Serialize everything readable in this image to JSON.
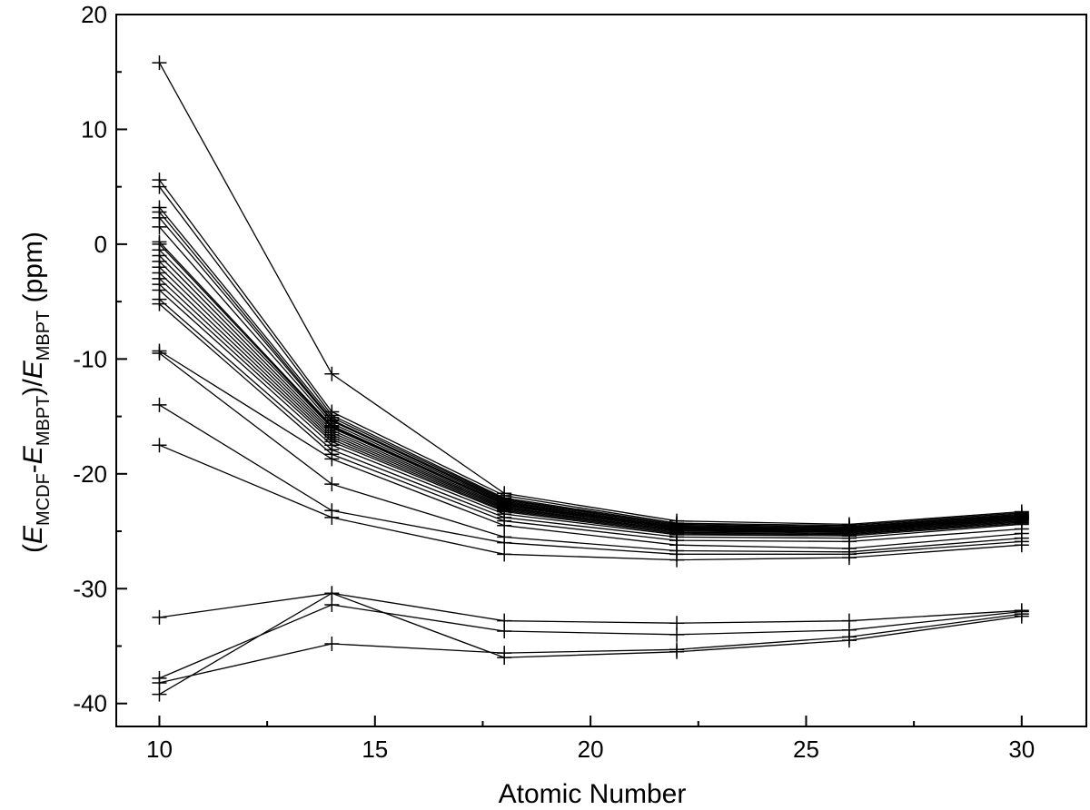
{
  "chart_data": {
    "type": "line",
    "marker": "plus",
    "x": [
      10,
      14,
      18,
      22,
      26,
      30
    ],
    "xlabel": "Atomic Number",
    "ylabel": {
      "open": "(",
      "e1": "E",
      "sub1": "MCDF",
      "minus": "-",
      "e2": "E",
      "sub2": "MBPT",
      "slash": ")/",
      "e3": "E",
      "sub3": "MBPT",
      "unit": " (ppm)"
    },
    "xlim": [
      9,
      31.5
    ],
    "ylim": [
      -42,
      20
    ],
    "xticks": [
      10,
      15,
      20,
      25,
      30
    ],
    "xtick_labels": [
      "10",
      "15",
      "20",
      "25",
      "30"
    ],
    "yticks": [
      20,
      10,
      0,
      -10,
      -20,
      -30,
      -40
    ],
    "ytick_labels": [
      "20",
      "10",
      "0",
      "-10",
      "-20",
      "-30",
      "-40"
    ],
    "grid": false,
    "colors": {
      "line": "#000000",
      "background": "#ffffff"
    },
    "series": [
      {
        "values": [
          15.8,
          -11.3,
          -21.7,
          -24.1,
          -24.4,
          -23.3
        ]
      },
      {
        "values": [
          5.6,
          -14.6,
          -21.9,
          -24.3,
          -24.5,
          -23.4
        ]
      },
      {
        "values": [
          5.0,
          -14.9,
          -22.1,
          -24.4,
          -24.6,
          -23.5
        ]
      },
      {
        "values": [
          3.2,
          -15.1,
          -22.2,
          -24.5,
          -24.7,
          -23.6
        ]
      },
      {
        "values": [
          2.8,
          -15.3,
          -22.3,
          -24.5,
          -24.7,
          -23.6
        ]
      },
      {
        "values": [
          2.3,
          -15.4,
          -22.4,
          -24.6,
          -24.8,
          -23.7
        ]
      },
      {
        "values": [
          1.5,
          -15.6,
          -22.5,
          -24.6,
          -24.8,
          -23.7
        ]
      },
      {
        "values": [
          0.2,
          -15.8,
          -22.6,
          -24.7,
          -24.9,
          -23.8
        ]
      },
      {
        "values": [
          0.0,
          -15.9,
          -22.6,
          -24.7,
          -24.9,
          -23.8
        ]
      },
      {
        "values": [
          -0.5,
          -16.0,
          -22.7,
          -24.8,
          -24.9,
          -23.8
        ]
      },
      {
        "values": [
          -1.0,
          -16.2,
          -22.8,
          -24.8,
          -25.0,
          -23.9
        ]
      },
      {
        "values": [
          -1.5,
          -16.4,
          -22.9,
          -24.9,
          -25.0,
          -23.9
        ]
      },
      {
        "values": [
          -2.0,
          -16.6,
          -23.0,
          -24.9,
          -25.1,
          -24.0
        ]
      },
      {
        "values": [
          -2.5,
          -16.8,
          -23.1,
          -25.0,
          -25.1,
          -24.0
        ]
      },
      {
        "values": [
          -3.0,
          -17.0,
          -23.2,
          -25.1,
          -25.2,
          -24.1
        ]
      },
      {
        "values": [
          -3.5,
          -17.2,
          -23.3,
          -25.2,
          -25.3,
          -24.2
        ]
      },
      {
        "values": [
          -4.0,
          -17.5,
          -23.5,
          -25.3,
          -25.4,
          -24.3
        ]
      },
      {
        "values": [
          -4.8,
          -17.9,
          -23.8,
          -25.5,
          -25.6,
          -24.4
        ]
      },
      {
        "values": [
          -5.2,
          -18.3,
          -24.1,
          -25.8,
          -25.9,
          -24.8
        ]
      },
      {
        "values": [
          -9.3,
          -18.7,
          -24.5,
          -26.2,
          -26.5,
          -25.2
        ]
      },
      {
        "values": [
          -9.5,
          -20.9,
          -25.5,
          -26.7,
          -26.8,
          -25.6
        ]
      },
      {
        "values": [
          -14.0,
          -23.2,
          -26.0,
          -27.0,
          -27.0,
          -25.9
        ]
      },
      {
        "values": [
          -17.5,
          -23.8,
          -27.0,
          -27.5,
          -27.3,
          -26.2
        ]
      },
      {
        "values": [
          -32.5,
          -30.4,
          -32.8,
          -33.0,
          -32.8,
          -31.9
        ]
      },
      {
        "values": [
          -37.8,
          -31.4,
          -33.7,
          -34.0,
          -33.6,
          -32.0
        ]
      },
      {
        "values": [
          -38.2,
          -34.8,
          -35.6,
          -35.3,
          -34.2,
          -32.2
        ]
      },
      {
        "values": [
          -39.2,
          -30.4,
          -36.0,
          -35.5,
          -34.5,
          -32.4
        ]
      }
    ]
  }
}
